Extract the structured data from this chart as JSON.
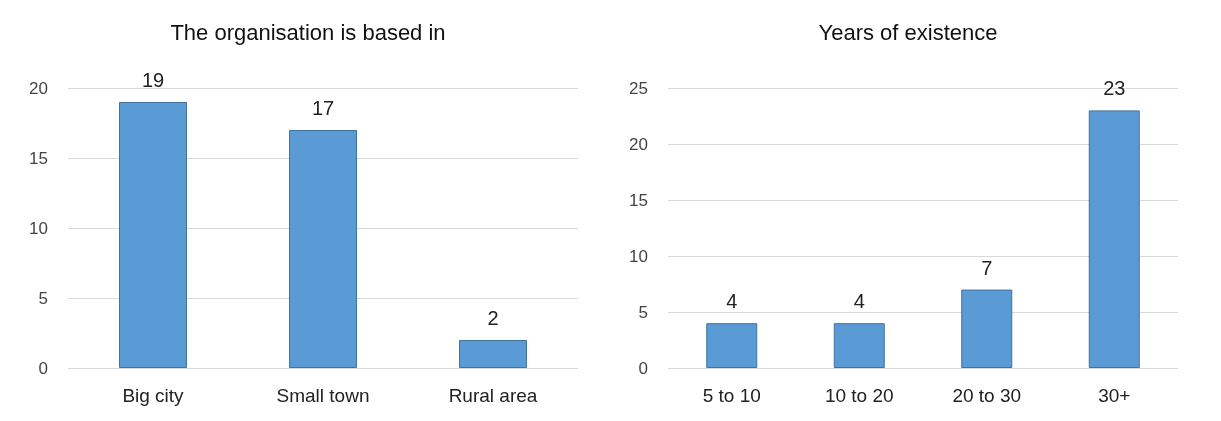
{
  "chart_data": [
    {
      "type": "bar",
      "title": "The organisation is based in",
      "categories": [
        "Big city",
        "Small town",
        "Rural area"
      ],
      "values": [
        19,
        17,
        2
      ],
      "color": "#5b9bd5",
      "ylim": [
        0,
        20
      ],
      "yticks": [
        0,
        5,
        10,
        15,
        20
      ],
      "grid": "y",
      "data_labels": true
    },
    {
      "type": "bar",
      "title": "Years of existence",
      "categories": [
        "5 to 10",
        "10 to 20",
        "20 to 30",
        "30+"
      ],
      "values": [
        4,
        4,
        7,
        23
      ],
      "color": "#5b9bd5",
      "ylim": [
        0,
        25
      ],
      "yticks": [
        0,
        5,
        10,
        15,
        20,
        25
      ],
      "grid": "y",
      "data_labels": true
    }
  ]
}
